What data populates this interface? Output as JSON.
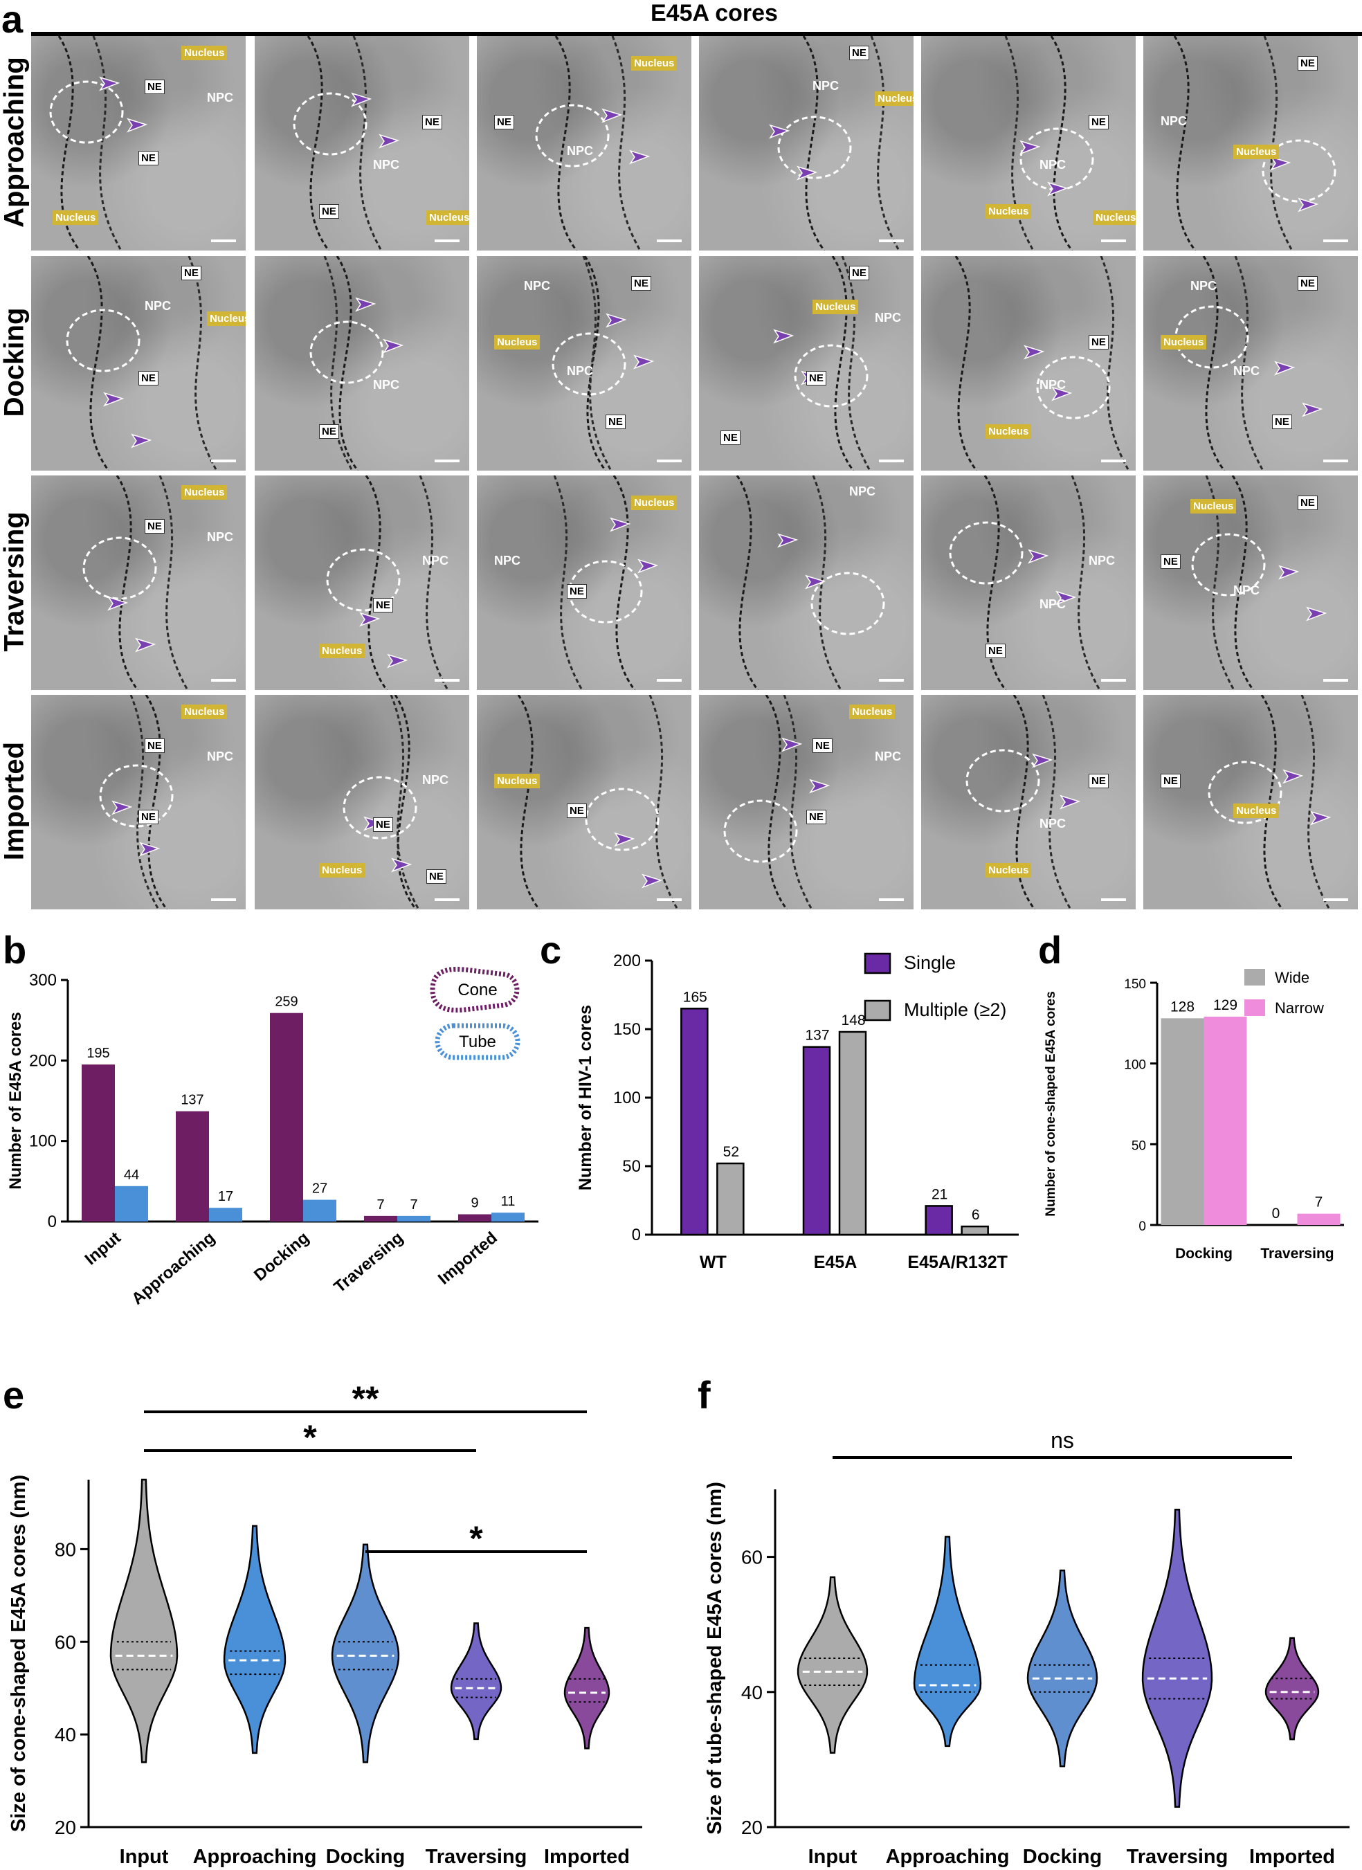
{
  "panel_a": {
    "letter": "a",
    "title": "E45A cores",
    "rows": [
      "Approaching",
      "Docking",
      "Traversing",
      "Imported"
    ],
    "tiles": [
      [
        {
          "tags": [
            [
              "nuc",
              "Nucleus"
            ],
            [
              "ne",
              "NE"
            ],
            [
              "npc",
              "NPC"
            ],
            [
              "ne",
              "NE"
            ],
            [
              "nuc",
              "Nucleus"
            ]
          ]
        },
        {
          "tags": [
            [
              "ne",
              "NE"
            ],
            [
              "npc",
              "NPC"
            ],
            [
              "ne",
              "NE"
            ],
            [
              "nuc",
              "Nucleus"
            ]
          ]
        },
        {
          "tags": [
            [
              "ne",
              "NE"
            ],
            [
              "npc",
              "NPC"
            ],
            [
              "nuc",
              "Nucleus"
            ]
          ]
        },
        {
          "tags": [
            [
              "ne",
              "NE"
            ],
            [
              "npc",
              "NPC"
            ],
            [
              "nuc",
              "Nucleus"
            ]
          ]
        },
        {
          "tags": [
            [
              "nuc",
              "Nucleus"
            ],
            [
              "npc",
              "NPC"
            ],
            [
              "ne",
              "NE"
            ],
            [
              "nuc",
              "Nucleus"
            ]
          ]
        },
        {
          "tags": [
            [
              "npc",
              "NPC"
            ],
            [
              "nuc",
              "Nucleus"
            ],
            [
              "ne",
              "NE"
            ]
          ]
        }
      ],
      [
        {
          "tags": [
            [
              "ne",
              "NE"
            ],
            [
              "npc",
              "NPC"
            ],
            [
              "nuc",
              "Nucleus"
            ],
            [
              "ne",
              "NE"
            ]
          ]
        },
        {
          "tags": [
            [
              "ne",
              "NE"
            ],
            [
              "npc",
              "NPC"
            ]
          ]
        },
        {
          "tags": [
            [
              "nuc",
              "Nucleus"
            ],
            [
              "npc",
              "NPC"
            ],
            [
              "ne",
              "NE"
            ],
            [
              "npc",
              "NPC"
            ],
            [
              "ne",
              "NE"
            ]
          ]
        },
        {
          "tags": [
            [
              "ne",
              "NE"
            ],
            [
              "nuc",
              "Nucleus"
            ],
            [
              "npc",
              "NPC"
            ],
            [
              "ne",
              "NE"
            ],
            [
              "ne",
              "NE"
            ]
          ]
        },
        {
          "tags": [
            [
              "nuc",
              "Nucleus"
            ],
            [
              "npc",
              "NPC"
            ],
            [
              "ne",
              "NE"
            ]
          ]
        },
        {
          "tags": [
            [
              "nuc",
              "Nucleus"
            ],
            [
              "npc",
              "NPC"
            ],
            [
              "ne",
              "NE"
            ],
            [
              "npc",
              "NPC"
            ],
            [
              "ne",
              "NE"
            ]
          ]
        }
      ],
      [
        {
          "tags": [
            [
              "nuc",
              "Nucleus"
            ],
            [
              "ne",
              "NE"
            ],
            [
              "npc",
              "NPC"
            ]
          ]
        },
        {
          "tags": [
            [
              "nuc",
              "Nucleus"
            ],
            [
              "ne",
              "NE"
            ],
            [
              "npc",
              "NPC"
            ]
          ]
        },
        {
          "tags": [
            [
              "npc",
              "NPC"
            ],
            [
              "ne",
              "NE"
            ],
            [
              "nuc",
              "Nucleus"
            ]
          ]
        },
        {
          "tags": [
            [
              "npc",
              "NPC"
            ]
          ]
        },
        {
          "tags": [
            [
              "ne",
              "NE"
            ],
            [
              "npc",
              "NPC"
            ],
            [
              "npc",
              "NPC"
            ]
          ]
        },
        {
          "tags": [
            [
              "ne",
              "NE"
            ],
            [
              "npc",
              "NPC"
            ],
            [
              "ne",
              "NE"
            ],
            [
              "nuc",
              "Nucleus"
            ]
          ]
        }
      ],
      [
        {
          "tags": [
            [
              "nuc",
              "Nucleus"
            ],
            [
              "ne",
              "NE"
            ],
            [
              "npc",
              "NPC"
            ],
            [
              "ne",
              "NE"
            ]
          ]
        },
        {
          "tags": [
            [
              "nuc",
              "Nucleus"
            ],
            [
              "ne",
              "NE"
            ],
            [
              "npc",
              "NPC"
            ],
            [
              "ne",
              "NE"
            ]
          ]
        },
        {
          "tags": [
            [
              "nuc",
              "Nucleus"
            ],
            [
              "ne",
              "NE"
            ]
          ]
        },
        {
          "tags": [
            [
              "nuc",
              "Nucleus"
            ],
            [
              "ne",
              "NE"
            ],
            [
              "npc",
              "NPC"
            ],
            [
              "ne",
              "NE"
            ]
          ]
        },
        {
          "tags": [
            [
              "nuc",
              "Nucleus"
            ],
            [
              "npc",
              "NPC"
            ],
            [
              "ne",
              "NE"
            ]
          ]
        },
        {
          "tags": [
            [
              "ne",
              "NE"
            ],
            [
              "nuc",
              "Nucleus"
            ]
          ]
        }
      ]
    ]
  },
  "legend_shapes": {
    "cone": "Cone",
    "tube": "Tube"
  },
  "colors": {
    "purple": "#6e1f63",
    "blue": "#4a90d9",
    "violet": "#6a2aa6",
    "gray": "#ababab",
    "pink": "#f08cdc",
    "white": "#ffffff"
  },
  "chart_data": [
    {
      "id": "b",
      "type": "bar",
      "letter": "b",
      "ylabel": "Number of E45A cores",
      "categories": [
        "Input",
        "Approaching",
        "Docking",
        "Traversing",
        "Imported"
      ],
      "series": [
        {
          "name": "Cone",
          "values": [
            195,
            137,
            259,
            7,
            9
          ]
        },
        {
          "name": "Tube",
          "values": [
            44,
            17,
            27,
            7,
            11
          ]
        }
      ],
      "ylim": [
        0,
        300
      ],
      "yticks": [
        0,
        100,
        200,
        300
      ]
    },
    {
      "id": "c",
      "type": "bar",
      "letter": "c",
      "ylabel": "Number of  HIV-1 cores",
      "categories": [
        "WT",
        "E45A",
        "E45A/R132T"
      ],
      "series": [
        {
          "name": "Single",
          "values": [
            165,
            137,
            21
          ]
        },
        {
          "name": "Multiple (≥2)",
          "values": [
            52,
            148,
            6
          ]
        }
      ],
      "ylim": [
        0,
        200
      ],
      "yticks": [
        0,
        50,
        100,
        150,
        200
      ]
    },
    {
      "id": "d",
      "type": "bar",
      "letter": "d",
      "ylabel": "Number of cone-shaped E45A cores",
      "categories": [
        "Docking",
        "Traversing"
      ],
      "series": [
        {
          "name": "Wide",
          "values": [
            128,
            0
          ]
        },
        {
          "name": "Narrow",
          "values": [
            129,
            7
          ]
        }
      ],
      "ylim": [
        0,
        150
      ],
      "yticks": [
        0,
        50,
        100,
        150
      ]
    },
    {
      "id": "e",
      "type": "violin",
      "letter": "e",
      "ylabel": "Size of cone-shaped E45A  cores (nm)",
      "categories": [
        "Input",
        "Approaching",
        "Docking",
        "Traversing",
        "Imported"
      ],
      "min": [
        34,
        36,
        34,
        39,
        37
      ],
      "max": [
        95,
        85,
        81,
        64,
        63
      ],
      "median": [
        57,
        56,
        57,
        50,
        49
      ],
      "q1": [
        54,
        53,
        54,
        48,
        47
      ],
      "q3": [
        60,
        58,
        60,
        52,
        52
      ],
      "ylim": [
        20,
        95
      ],
      "yticks": [
        20,
        40,
        60,
        80
      ],
      "significance": [
        {
          "from": 0,
          "to": 4,
          "label": "**"
        },
        {
          "from": 0,
          "to": 3,
          "label": "*"
        },
        {
          "from": 2,
          "to": 4,
          "label": "*"
        }
      ]
    },
    {
      "id": "f",
      "type": "violin",
      "letter": "f",
      "ylabel": "Size of tube-shaped E45A cores (nm)",
      "categories": [
        "Input",
        "Approaching",
        "Docking",
        "Traversing",
        "Imported"
      ],
      "min": [
        31,
        32,
        29,
        23,
        33
      ],
      "max": [
        57,
        63,
        58,
        67,
        48
      ],
      "median": [
        43,
        41,
        42,
        42,
        40
      ],
      "q1": [
        41,
        40,
        40,
        39,
        39
      ],
      "q3": [
        45,
        44,
        44,
        45,
        42
      ],
      "ylim": [
        20,
        70
      ],
      "yticks": [
        20,
        40,
        60
      ],
      "significance": [
        {
          "from": 0,
          "to": 4,
          "label": "ns"
        }
      ]
    }
  ]
}
